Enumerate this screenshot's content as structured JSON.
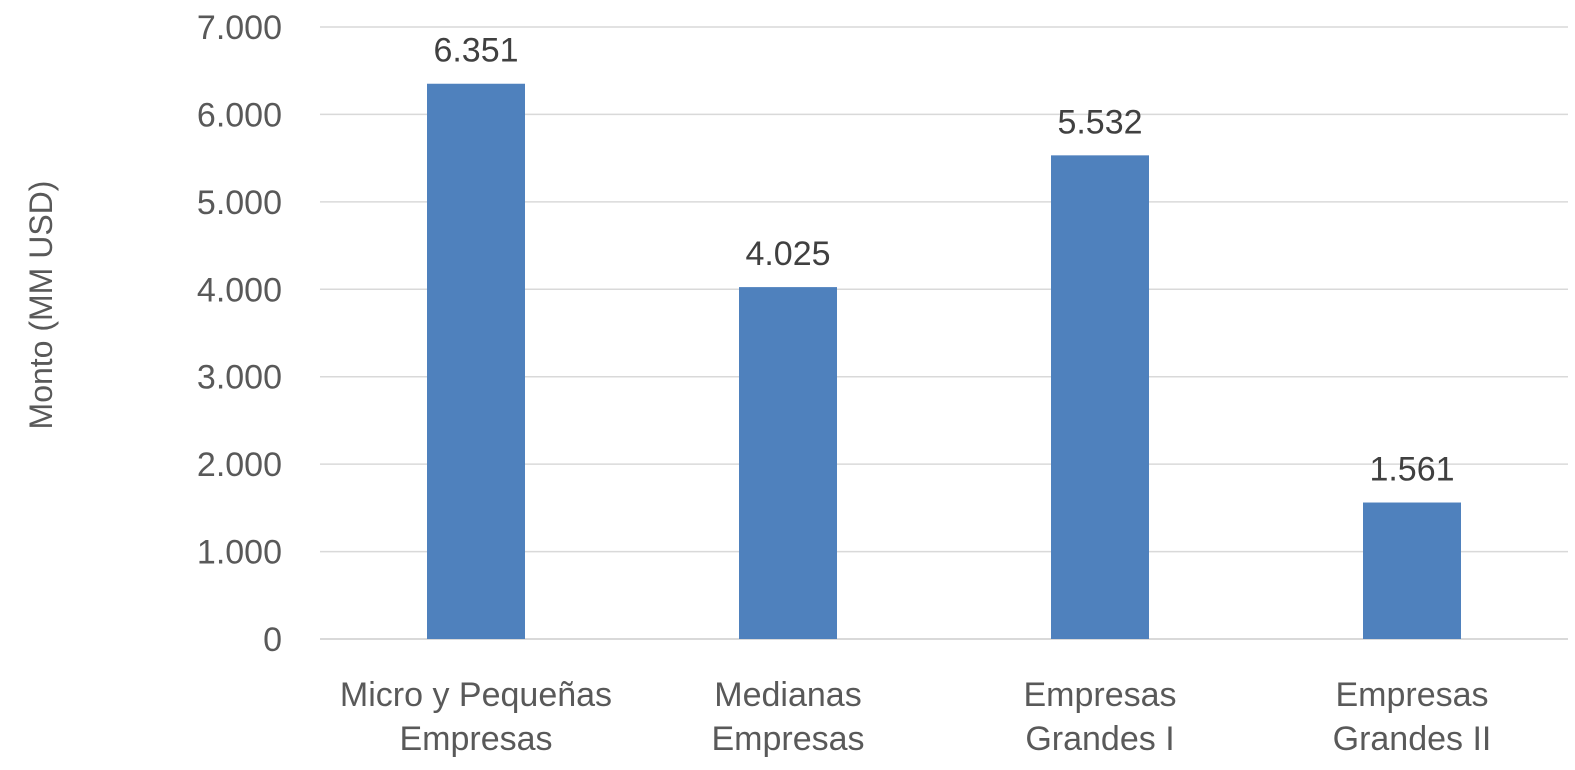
{
  "chart_data": {
    "type": "bar",
    "title": "",
    "xlabel": "",
    "ylabel": "Monto (MM USD)",
    "ylim": [
      0,
      7000
    ],
    "yticks": [
      0,
      1000,
      2000,
      3000,
      4000,
      5000,
      6000,
      7000
    ],
    "ytick_labels": [
      "0",
      "1.000",
      "2.000",
      "3.000",
      "4.000",
      "5.000",
      "6.000",
      "7.000"
    ],
    "categories": [
      [
        "Micro y Pequeñas",
        "Empresas"
      ],
      [
        "Medianas",
        "Empresas"
      ],
      [
        "Empresas",
        "Grandes I"
      ],
      [
        "Empresas",
        "Grandes II"
      ]
    ],
    "values": [
      6351,
      4025,
      5532,
      1561
    ],
    "data_labels": [
      "6.351",
      "4.025",
      "5.532",
      "1.561"
    ],
    "bar_color": "#4f81bd",
    "grid": true,
    "legend": "none"
  }
}
